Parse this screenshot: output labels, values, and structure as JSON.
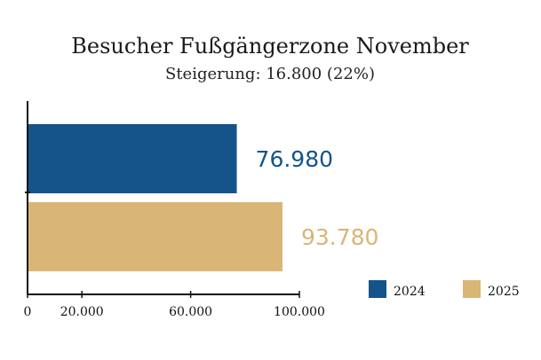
{
  "chart_data": {
    "type": "bar",
    "orientation": "horizontal",
    "title": "Besucher Fußgängerzone November",
    "subtitle": "Steigerung: 16.800 (22%)",
    "categories": [
      "2024",
      "2025"
    ],
    "values": [
      76980,
      93780
    ],
    "value_labels": [
      "76.980",
      "93.780"
    ],
    "colors": [
      "#14548a",
      "#d9b676"
    ],
    "xlim": [
      0,
      100000
    ],
    "xticks": [
      {
        "value": 0,
        "label": "0"
      },
      {
        "value": 20000,
        "label": "20.000"
      },
      {
        "value": 60000,
        "label": "60.000"
      },
      {
        "value": 100000,
        "label": "100.000"
      }
    ],
    "xlabel": "",
    "ylabel": "",
    "grid": false,
    "legend": {
      "position": "right",
      "entries": [
        {
          "label": "2024",
          "color": "#14548a"
        },
        {
          "label": "2025",
          "color": "#d9b676"
        }
      ]
    }
  }
}
